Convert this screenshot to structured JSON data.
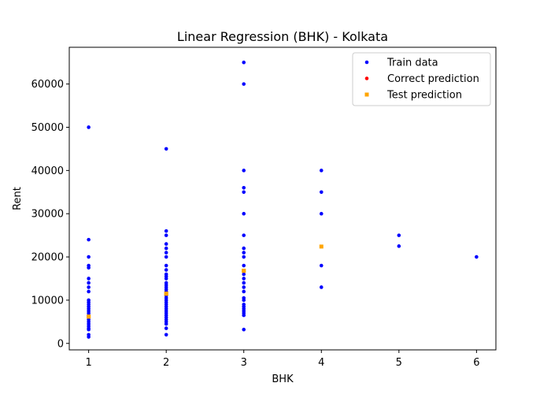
{
  "chart_data": {
    "type": "scatter",
    "title": "Linear Regression (BHK) - Kolkata",
    "xlabel": "BHK",
    "ylabel": "Rent",
    "xlim": [
      0.75,
      6.25
    ],
    "ylim": [
      -1500,
      68500
    ],
    "xticks": [
      1,
      2,
      3,
      4,
      5,
      6
    ],
    "yticks": [
      0,
      10000,
      20000,
      30000,
      40000,
      50000,
      60000
    ],
    "grid": false,
    "legend_position": "top-right",
    "series": [
      {
        "name": "Train data",
        "color": "#0000ff",
        "marker": "circle",
        "points": [
          [
            1,
            50000
          ],
          [
            1,
            24000
          ],
          [
            1,
            20000
          ],
          [
            1,
            18000
          ],
          [
            1,
            17500
          ],
          [
            1,
            15000
          ],
          [
            1,
            14000
          ],
          [
            1,
            13000
          ],
          [
            1,
            12000
          ],
          [
            1,
            10000
          ],
          [
            1,
            9500
          ],
          [
            1,
            9000
          ],
          [
            1,
            8500
          ],
          [
            1,
            8000
          ],
          [
            1,
            7500
          ],
          [
            1,
            7000
          ],
          [
            1,
            6500
          ],
          [
            1,
            6000
          ],
          [
            1,
            5500
          ],
          [
            1,
            5000
          ],
          [
            1,
            4500
          ],
          [
            1,
            4000
          ],
          [
            1,
            3500
          ],
          [
            1,
            3200
          ],
          [
            1,
            2000
          ],
          [
            1,
            1500
          ],
          [
            2,
            45000
          ],
          [
            2,
            26000
          ],
          [
            2,
            25000
          ],
          [
            2,
            23000
          ],
          [
            2,
            22000
          ],
          [
            2,
            21000
          ],
          [
            2,
            20000
          ],
          [
            2,
            18000
          ],
          [
            2,
            17000
          ],
          [
            2,
            16000
          ],
          [
            2,
            15500
          ],
          [
            2,
            15000
          ],
          [
            2,
            14000
          ],
          [
            2,
            13500
          ],
          [
            2,
            13000
          ],
          [
            2,
            12500
          ],
          [
            2,
            12000
          ],
          [
            2,
            11000
          ],
          [
            2,
            10500
          ],
          [
            2,
            10000
          ],
          [
            2,
            9500
          ],
          [
            2,
            9000
          ],
          [
            2,
            8500
          ],
          [
            2,
            8000
          ],
          [
            2,
            7500
          ],
          [
            2,
            7000
          ],
          [
            2,
            6500
          ],
          [
            2,
            6000
          ],
          [
            2,
            5500
          ],
          [
            2,
            5000
          ],
          [
            2,
            4500
          ],
          [
            2,
            3500
          ],
          [
            2,
            2000
          ],
          [
            3,
            65000
          ],
          [
            3,
            60000
          ],
          [
            3,
            40000
          ],
          [
            3,
            36000
          ],
          [
            3,
            35000
          ],
          [
            3,
            30000
          ],
          [
            3,
            25000
          ],
          [
            3,
            22000
          ],
          [
            3,
            21000
          ],
          [
            3,
            20000
          ],
          [
            3,
            18000
          ],
          [
            3,
            16000
          ],
          [
            3,
            15000
          ],
          [
            3,
            14000
          ],
          [
            3,
            13000
          ],
          [
            3,
            12000
          ],
          [
            3,
            10500
          ],
          [
            3,
            10000
          ],
          [
            3,
            9000
          ],
          [
            3,
            8500
          ],
          [
            3,
            8000
          ],
          [
            3,
            7500
          ],
          [
            3,
            7000
          ],
          [
            3,
            6500
          ],
          [
            3,
            3200
          ],
          [
            4,
            40000
          ],
          [
            4,
            35000
          ],
          [
            4,
            30000
          ],
          [
            4,
            18000
          ],
          [
            4,
            13000
          ],
          [
            5,
            25000
          ],
          [
            5,
            22500
          ],
          [
            6,
            20000
          ]
        ]
      },
      {
        "name": "Correct prediction",
        "color": "#ff0000",
        "marker": "circle",
        "points": []
      },
      {
        "name": "Test prediction",
        "color": "#ffa500",
        "marker": "square",
        "points": [
          [
            1,
            6200
          ],
          [
            1,
            6200
          ],
          [
            2,
            11500
          ],
          [
            2,
            11500
          ],
          [
            3,
            16800
          ],
          [
            3,
            16800
          ],
          [
            4,
            22400
          ]
        ]
      }
    ]
  }
}
